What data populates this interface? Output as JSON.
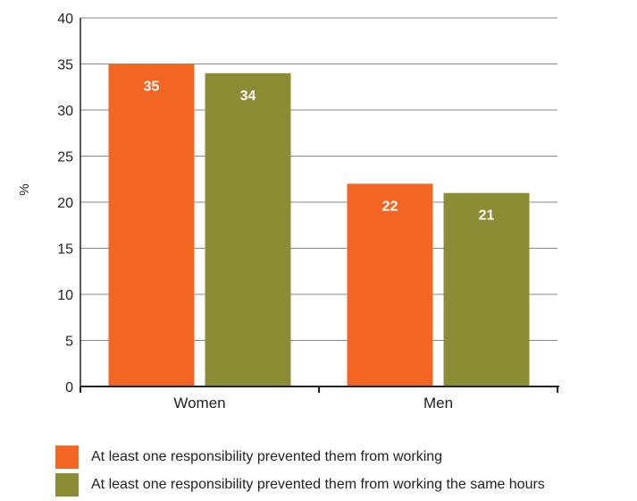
{
  "chart_data": {
    "type": "bar",
    "categories": [
      "Women",
      "Men"
    ],
    "series": [
      {
        "name": "At least one responsibility prevented them from working",
        "values": [
          35,
          22
        ],
        "color": "#f26522"
      },
      {
        "name": "At least one responsibility prevented them from working the same hours",
        "values": [
          34,
          21
        ],
        "color": "#8c8c35"
      }
    ],
    "ylabel": "%",
    "ylim": [
      0,
      40
    ],
    "yticks": [
      0,
      5,
      10,
      15,
      20,
      25,
      30,
      35,
      40
    ],
    "grid": true,
    "legend_position": "bottom-left"
  }
}
